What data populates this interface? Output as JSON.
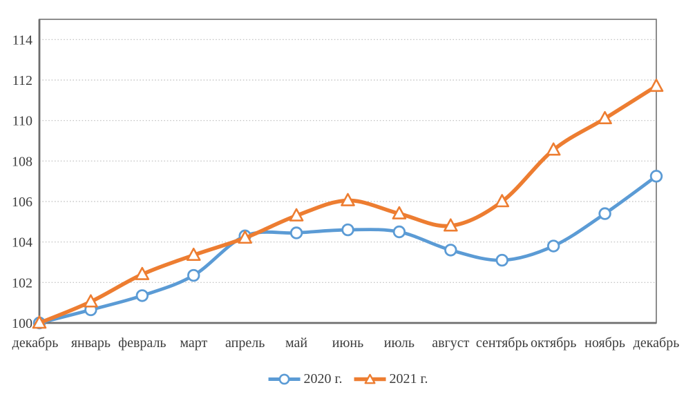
{
  "chart_data": {
    "type": "line",
    "title": "",
    "xlabel": "",
    "ylabel": "",
    "categories": [
      "декабрь",
      "январь",
      "февраль",
      "март",
      "апрель",
      "май",
      "июнь",
      "июль",
      "август",
      "сентябрь",
      "октябрь",
      "ноябрь",
      "декабрь"
    ],
    "series": [
      {
        "name": "2020 г.",
        "color": "#5B9BD5",
        "marker": "circle",
        "values": [
          100,
          100.65,
          101.35,
          102.35,
          104.3,
          104.45,
          104.6,
          104.5,
          103.6,
          103.1,
          103.8,
          105.4,
          107.25
        ]
      },
      {
        "name": "2021 г.",
        "color": "#ED7D31",
        "marker": "triangle",
        "values": [
          100,
          101.05,
          102.4,
          103.35,
          104.2,
          105.3,
          106.05,
          105.4,
          104.8,
          106.0,
          108.55,
          110.1,
          111.7
        ]
      }
    ],
    "ylim": [
      100,
      115
    ],
    "yticks": [
      100,
      102,
      104,
      106,
      108,
      110,
      112,
      114
    ],
    "grid": "horizontal-dotted",
    "smooth_lines": true,
    "legend_position": "bottom-center",
    "colors": {
      "axis": "#6d6d6d",
      "plot_border": "#7f7f7f",
      "gridline": "#bdbdbd",
      "tick_label": "#3d3d3d",
      "marker_fill": "#ffffff"
    }
  }
}
